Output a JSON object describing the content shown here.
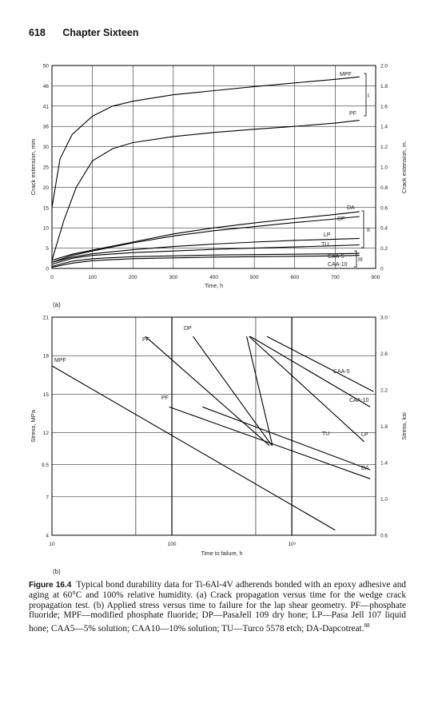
{
  "header": {
    "page_number": "618",
    "chapter": "Chapter Sixteen"
  },
  "panel_labels": {
    "a": "(a)",
    "b": "(b)"
  },
  "caption": {
    "figure_label": "Figure 16.4",
    "text": "Typical bond durability data for Ti-6Al-4V adherends bonded with an epoxy adhesive and aging at 60°C and 100% relative humidity. (a) Crack propagation versus time for the wedge crack propagation test. (b) Applied stress versus time to failure for the lap shear geometry. PF—phosphate fluoride; MPF—modified phosphate fluoride; DP—PasaJell 109 dry hone; LP—Pasa Jell 107 liquid hone; CAA5—5% solution; CAA10—10% solution; TU—Turco 5578 etch; DA-Dapcotreat.",
    "footnote": "88"
  },
  "chart_data": [
    {
      "type": "line",
      "xlabel": "Time, h",
      "ylabel": "Crack extension, mm",
      "y2label": "Crack extension, in.",
      "xlim": [
        0,
        800
      ],
      "ylim": [
        0,
        50
      ],
      "y2lim": [
        0,
        2.0
      ],
      "x_ticks": [
        "0",
        "100",
        "200",
        "300",
        "400",
        "500",
        "600",
        "700",
        "800"
      ],
      "y_ticks": [
        "0",
        "5",
        "10",
        "15",
        "20",
        "25",
        "30",
        "36",
        "41",
        "46",
        "50"
      ],
      "y2_ticks": [
        "0",
        "0.2",
        "0.4",
        "0.6",
        "0.8",
        "1.0",
        "1.2",
        "1.4",
        "1.6",
        "1.8",
        "2.0"
      ],
      "grid": true,
      "series": [
        {
          "name": "MPF",
          "x": [
            0,
            20,
            50,
            100,
            150,
            200,
            300,
            400,
            500,
            600,
            700,
            760
          ],
          "y": [
            15,
            27,
            33,
            37.5,
            40,
            41.2,
            42.8,
            43.8,
            44.8,
            45.7,
            46.6,
            47.2
          ]
        },
        {
          "name": "PF",
          "x": [
            0,
            30,
            60,
            100,
            150,
            200,
            300,
            400,
            500,
            600,
            700,
            760
          ],
          "y": [
            2,
            12,
            20,
            26.5,
            29.5,
            31,
            32.5,
            33.5,
            34.3,
            35,
            35.8,
            36.5
          ]
        },
        {
          "name": "DA",
          "x": [
            0,
            50,
            100,
            200,
            300,
            400,
            500,
            600,
            700,
            760
          ],
          "y": [
            2,
            3.5,
            4.5,
            6.5,
            8.5,
            10,
            11.2,
            12.3,
            13.3,
            14
          ]
        },
        {
          "name": "DP",
          "x": [
            0,
            50,
            100,
            200,
            300,
            400,
            500,
            600,
            700,
            760
          ],
          "y": [
            1.5,
            3.2,
            4.3,
            6.3,
            8,
            9.3,
            10.3,
            11.3,
            12.2,
            12.8
          ]
        },
        {
          "name": "LP",
          "x": [
            0,
            50,
            100,
            200,
            300,
            400,
            500,
            600,
            700,
            760
          ],
          "y": [
            1.5,
            2.8,
            3.6,
            4.6,
            5.4,
            6,
            6.5,
            6.9,
            7.2,
            7.4
          ]
        },
        {
          "name": "TU",
          "x": [
            0,
            50,
            100,
            200,
            300,
            400,
            500,
            600,
            700,
            760
          ],
          "y": [
            1,
            2.5,
            3.2,
            3.9,
            4.3,
            4.7,
            5,
            5.3,
            5.6,
            5.8
          ]
        },
        {
          "name": "CAA-5",
          "x": [
            0,
            50,
            100,
            200,
            300,
            400,
            500,
            600,
            700,
            760
          ],
          "y": [
            0.5,
            1.8,
            2.4,
            2.9,
            3.1,
            3.3,
            3.4,
            3.5,
            3.6,
            3.7
          ]
        },
        {
          "name": "CAA-10",
          "x": [
            0,
            50,
            100,
            200,
            300,
            400,
            500,
            600,
            700,
            760
          ],
          "y": [
            0.3,
            1.3,
            1.9,
            2.4,
            2.6,
            2.8,
            2.9,
            3,
            3.1,
            3.2
          ]
        }
      ],
      "annotations": [
        "I",
        "II",
        "III"
      ]
    },
    {
      "type": "line",
      "xlabel": "Time to failure, h",
      "ylabel": "Stress, MPa",
      "y2label": "Stress, ksi",
      "x_scale": "log",
      "xlim": [
        10,
        5000
      ],
      "ylim": [
        4,
        21
      ],
      "y2lim": [
        0.6,
        3.0
      ],
      "x_ticks": [
        "10",
        "100",
        "10³"
      ],
      "y_ticks": [
        "4",
        "7",
        "9.5",
        "12",
        "15",
        "18",
        "21"
      ],
      "y2_ticks": [
        "0.6",
        "1.0",
        "1.4",
        "1.8",
        "2.2",
        "2.6",
        "3.0"
      ],
      "grid": true,
      "series": [
        {
          "name": "MPF",
          "x": [
            10,
            2300
          ],
          "y": [
            17.2,
            4.4
          ]
        },
        {
          "name": "PF",
          "x": [
            60,
            650
          ],
          "y": [
            19.5,
            11
          ]
        },
        {
          "name": "PF",
          "x": [
            95,
            4500
          ],
          "y": [
            14,
            8.4
          ]
        },
        {
          "name": "DP",
          "x": [
            150,
            680
          ],
          "y": [
            19.5,
            11
          ]
        },
        {
          "name": "DA",
          "x": [
            180,
            4500
          ],
          "y": [
            14,
            9.1
          ]
        },
        {
          "name": "TU",
          "x": [
            420,
            690
          ],
          "y": [
            19.5,
            11
          ]
        },
        {
          "name": "LP",
          "x": [
            440,
            4000
          ],
          "y": [
            19.5,
            11.3
          ]
        },
        {
          "name": "CAA-10",
          "x": [
            450,
            4500
          ],
          "y": [
            19.5,
            14
          ]
        },
        {
          "name": "CAA-5",
          "x": [
            620,
            4800
          ],
          "y": [
            19.5,
            15.2
          ]
        }
      ]
    }
  ]
}
